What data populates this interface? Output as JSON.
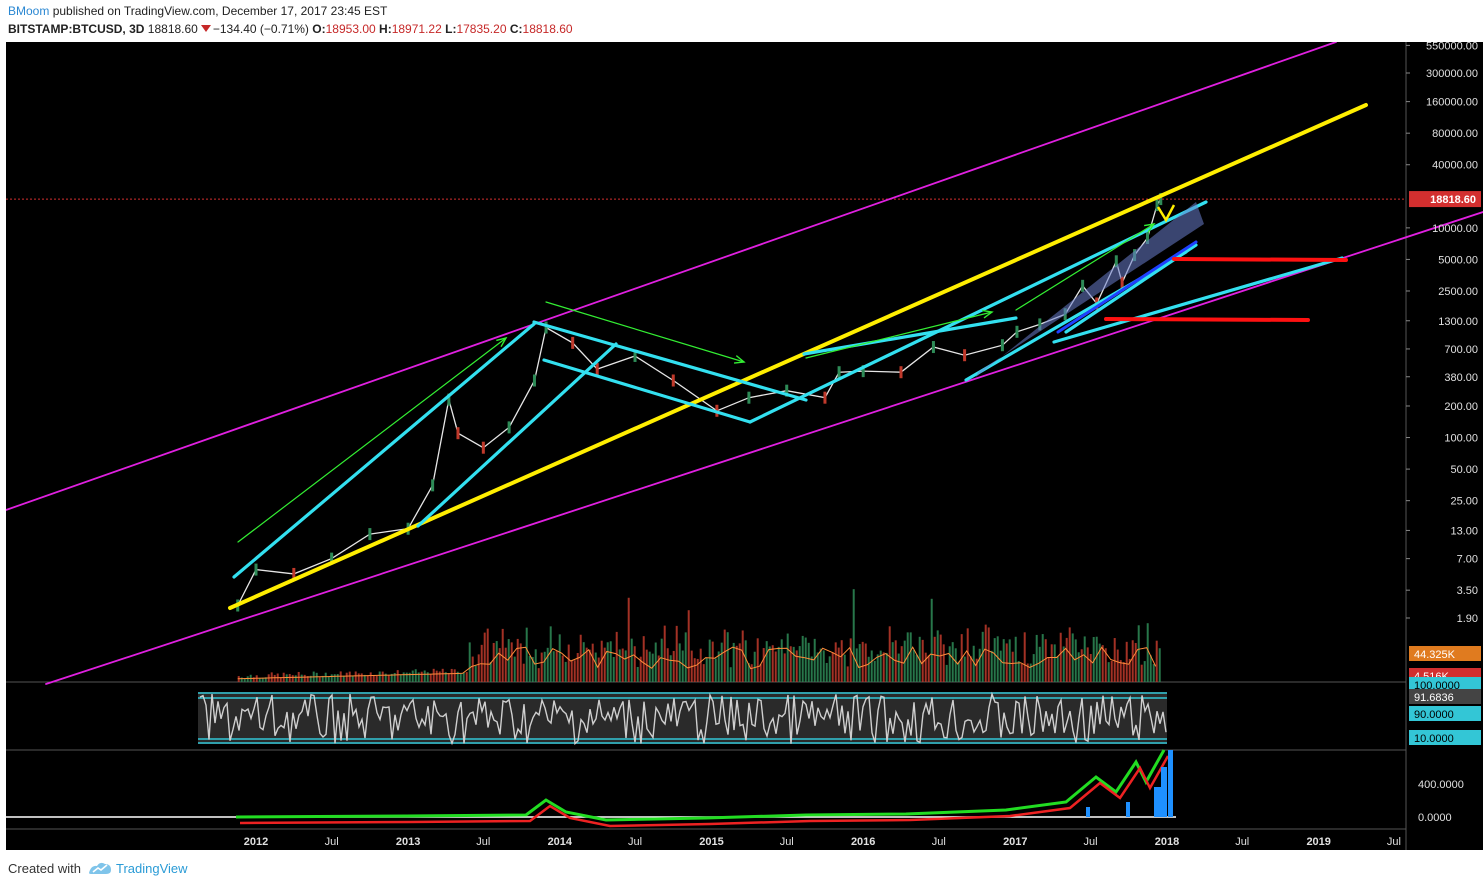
{
  "header": {
    "author": "BMoom",
    "published_text": "published on TradingView.com, December 17, 2017 23:45 EST",
    "symbol": "BITSTAMP:BTCUSD, 3D",
    "last": "18818.60",
    "change": "−134.40 (−0.71%)",
    "open_label": "O:",
    "open_value": "18953.00",
    "high_label": "H:",
    "high_value": "18971.22",
    "low_label": "L:",
    "low_value": "17835.20",
    "close_label": "C:",
    "close_value": "18818.60"
  },
  "footer": {
    "created_with": "Created with",
    "brand": "TradingView",
    "brand_icon": "tradingview-logo-icon"
  },
  "colors": {
    "background": "#000000",
    "magenta_channel": "#e020e0",
    "yellow_trend": "#ffee00",
    "cyan_lines": "#33e0f0",
    "green_arrows": "#33ee33",
    "red_levels": "#ff1111",
    "candle_up": "#2e8b57",
    "candle_down": "#c0392b",
    "price_tag": "#d32f2f"
  },
  "chart_data": [
    {
      "type": "line",
      "panel": "price",
      "scale": "log",
      "x_ticks": [
        "2012",
        "Jul",
        "2013",
        "Jul",
        "2014",
        "Jul",
        "2015",
        "Jul",
        "2016",
        "Jul",
        "2017",
        "Jul",
        "2018",
        "Jul",
        "2019",
        "Jul"
      ],
      "y_ticks": [
        "550000.00",
        "300000.00",
        "160000.00",
        "80000.00",
        "40000.00",
        "18818.60",
        "10000.00",
        "5000.00",
        "2500.00",
        "1300.00",
        "700.00",
        "380.00",
        "200.00",
        "100.00",
        "50.00",
        "25.00",
        "13.00",
        "7.00",
        "3.50",
        "1.90"
      ],
      "ylim": [
        1.4,
        600000
      ],
      "current_price": 18818.6,
      "series": [
        {
          "x": [
            "2011-11-18",
            "2012-01-01",
            "2012-04-01",
            "2012-07-01",
            "2012-10-01",
            "2013-01-01",
            "2013-03-01",
            "2013-04-09",
            "2013-05-01",
            "2013-07-01",
            "2013-09-01",
            "2013-11-01",
            "2013-11-29",
            "2014-02-01",
            "2014-04-01",
            "2014-07-01",
            "2014-10-01",
            "2015-01-14",
            "2015-04-01",
            "2015-07-01",
            "2015-10-01",
            "2015-11-04",
            "2016-01-01",
            "2016-04-01",
            "2016-06-18",
            "2016-09-01",
            "2016-12-01",
            "2017-01-05",
            "2017-03-01",
            "2017-05-01",
            "2017-06-12",
            "2017-07-16",
            "2017-09-01",
            "2017-09-15",
            "2017-10-15",
            "2017-11-15",
            "2017-12-08",
            "2017-12-17"
          ],
          "y": [
            2.5,
            5.5,
            5,
            7,
            12,
            13.5,
            35,
            230,
            110,
            80,
            125,
            350,
            1120,
            800,
            450,
            600,
            350,
            180,
            240,
            280,
            240,
            420,
            430,
            420,
            730,
            610,
            760,
            1020,
            1200,
            1500,
            2800,
            1900,
            4800,
            3000,
            5500,
            8000,
            16500,
            18818.6
          ]
        }
      ],
      "annotations": {
        "outer_channel": "magenta parallel lines",
        "main_trend": "yellow line",
        "channels": "cyan lines",
        "momentum": "green arrows",
        "levels": "red horizontal lines"
      }
    },
    {
      "type": "bar",
      "panel": "volume",
      "labels": [
        "44.325K",
        "4.516K"
      ]
    },
    {
      "type": "line",
      "panel": "oscillator",
      "y_ticks": [
        "100.0000",
        "91.6836",
        "90.0000",
        "10.0000"
      ],
      "ylim": [
        0,
        100
      ]
    },
    {
      "type": "line",
      "panel": "macd",
      "y_ticks": [
        "400.0000",
        "0.0000"
      ]
    }
  ]
}
